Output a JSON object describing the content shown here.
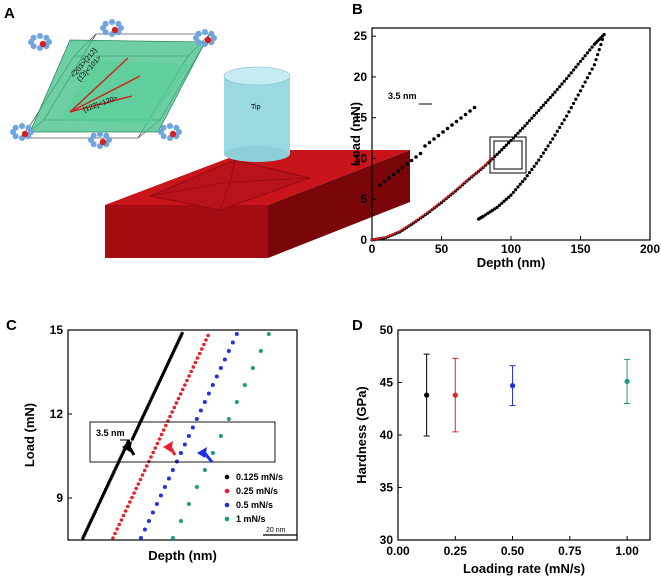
{
  "panels": {
    "a": {
      "letter": "A",
      "tip_label": "Tip",
      "crystal_labels": [
        "{1̅3}<101>",
        "{122}<120>",
        "<̅203>̅{212}"
      ]
    },
    "b": {
      "letter": "B",
      "inset_label": "3.5 nm"
    },
    "c": {
      "letter": "C",
      "inset_label": "3.5 nm",
      "scalebar_label": "20 nm"
    },
    "d": {
      "letter": "D"
    }
  },
  "colors": {
    "black": "#000000",
    "red": "#e8202a",
    "blue": "#1f2ee8",
    "teal": "#1a9a85",
    "slab": "#b00d12",
    "cylinder": "#9ad8e2",
    "crystal": "#3fbf85"
  },
  "chart_data": [
    {
      "type": "line",
      "panel": "B",
      "xlabel": "Depth (nm)",
      "ylabel": "Load (mN)",
      "xlim": [
        0,
        200
      ],
      "ylim": [
        0,
        26
      ],
      "xticks": [
        0,
        50,
        100,
        150,
        200
      ],
      "yticks": [
        0,
        5,
        10,
        15,
        20,
        25
      ],
      "series": [
        {
          "color": "black",
          "x": [
            0,
            10,
            20,
            30,
            40,
            50,
            60,
            70,
            80,
            90,
            100,
            110,
            120,
            130,
            140,
            150,
            160,
            167
          ],
          "y": [
            0,
            0.3,
            1.0,
            2.1,
            3.3,
            4.6,
            6.0,
            7.5,
            8.9,
            10.5,
            12.2,
            14.0,
            15.9,
            17.8,
            19.8,
            21.9,
            24.0,
            25.2
          ]
        },
        {
          "color": "black",
          "x": [
            167,
            160,
            150,
            140,
            130,
            120,
            110,
            100,
            90,
            80,
            76
          ],
          "y": [
            25.2,
            21.5,
            18.3,
            15.2,
            12.4,
            9.8,
            7.5,
            5.5,
            4.0,
            2.9,
            2.5
          ]
        },
        {
          "color": "red",
          "x": [
            0,
            10,
            20,
            30,
            40,
            50,
            60,
            70,
            80,
            88
          ],
          "y": [
            0,
            0.35,
            1.1,
            2.2,
            3.4,
            4.7,
            6.1,
            7.6,
            9.0,
            10.3
          ]
        }
      ]
    },
    {
      "type": "scatter",
      "panel": "C",
      "xlabel": "Depth (nm)",
      "ylabel": "Load (mN)",
      "ylim": [
        7.5,
        15
      ],
      "yticks": [
        9,
        12,
        15
      ],
      "legend": "bottom-right",
      "series": [
        {
          "name": "0.125 mN/s",
          "color": "black"
        },
        {
          "name": "0.25 mN/s",
          "color": "red"
        },
        {
          "name": "0.5 mN/s",
          "color": "blue"
        },
        {
          "name": "1 mN/s",
          "color": "teal"
        }
      ]
    },
    {
      "type": "scatter",
      "panel": "D",
      "xlabel": "Loading rate (mN/s)",
      "ylabel": "Hardness (GPa)",
      "xlim": [
        0,
        1.1
      ],
      "ylim": [
        30,
        50
      ],
      "xticks": [
        "0.00",
        "0.25",
        "0.50",
        "0.75",
        "1.00"
      ],
      "yticks": [
        30,
        35,
        40,
        45,
        50
      ],
      "points": [
        {
          "x": 0.125,
          "y": 43.8,
          "err": 3.9,
          "color": "black"
        },
        {
          "x": 0.25,
          "y": 43.8,
          "err": 3.5,
          "color": "red"
        },
        {
          "x": 0.5,
          "y": 44.7,
          "err": 1.9,
          "color": "blue"
        },
        {
          "x": 1.0,
          "y": 45.1,
          "err": 2.1,
          "color": "teal"
        }
      ]
    }
  ]
}
